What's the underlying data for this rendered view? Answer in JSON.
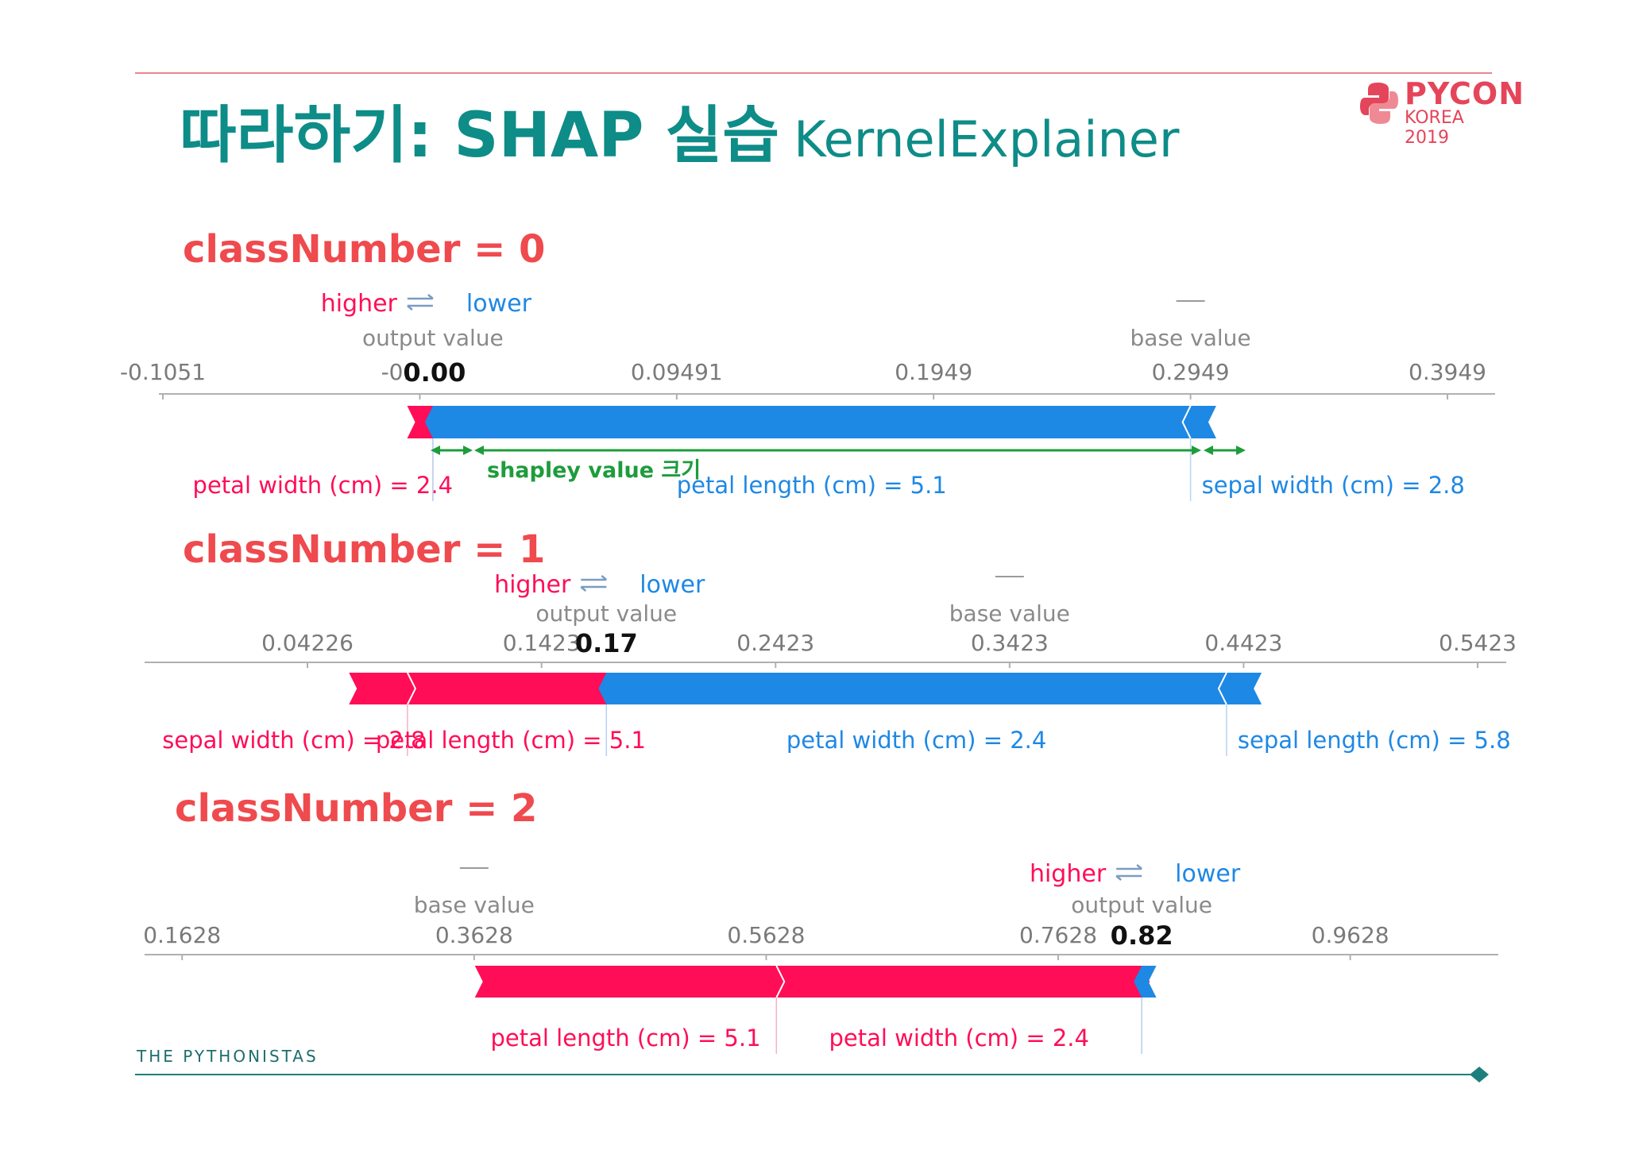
{
  "slide": {
    "title_main": "따라하기: SHAP 실습",
    "title_sub": "KernelExplainer",
    "logo_line1": "PYCON",
    "logo_line2": "KOREA 2019",
    "footer": "THE PYTHONISTAS"
  },
  "colors": {
    "positive": "#ff0d57",
    "negative": "#1e88e5",
    "title": "#0e8c88",
    "class_label": "#ef4a4e",
    "annotation": "#1e9c3c"
  },
  "labels": {
    "higher": "higher",
    "lower": "lower",
    "output_value": "output value",
    "base_value": "base value"
  },
  "annotation": {
    "text": "shapley value 크기"
  },
  "chart_data": [
    {
      "type": "force",
      "label": "classNumber = 0",
      "ticks": [
        -0.1051,
        -0.0051,
        0.09491,
        0.1949,
        0.2949,
        0.3949
      ],
      "tick_labels": [
        "-0.1051",
        "-0.",
        "0.09491",
        "0.1949",
        "0.2949",
        "0.3949"
      ],
      "xlim": [
        -0.1051,
        0.3949
      ],
      "base_value": 0.2949,
      "output_value": 0.0,
      "output_label": "0.00",
      "positive": [
        {
          "feature": "petal width (cm) = 2.4",
          "value": 0.01
        }
      ],
      "negative": [
        {
          "feature": "petal length (cm) = 5.1",
          "value": 0.2949
        },
        {
          "feature": "sepal width (cm) = 2.8",
          "value": 0.01
        }
      ]
    },
    {
      "type": "force",
      "label": "classNumber = 1",
      "ticks": [
        0.04226,
        0.1423,
        0.2423,
        0.3423,
        0.4423,
        0.5423
      ],
      "tick_labels": [
        "0.04226",
        "0.1423",
        "0.2423",
        "0.3423",
        "0.4423",
        "0.5423"
      ],
      "xlim": [
        0.04226,
        0.5423
      ],
      "base_value": 0.3423,
      "output_value": 0.17,
      "output_label": "0.17",
      "positive": [
        {
          "feature": "sepal width (cm) = 2.8",
          "value": 0.025
        },
        {
          "feature": "petal length (cm) = 5.1",
          "value": 0.085
        }
      ],
      "negative": [
        {
          "feature": "petal width (cm) = 2.4",
          "value": 0.265
        },
        {
          "feature": "sepal length (cm) = 5.8",
          "value": 0.015
        }
      ]
    },
    {
      "type": "force",
      "label": "classNumber = 2",
      "ticks": [
        0.1628,
        0.3628,
        0.5628,
        0.7628,
        0.9628
      ],
      "tick_labels": [
        "0.1628",
        "0.3628",
        "0.5628",
        "0.7628",
        "0.9628"
      ],
      "xlim": [
        0.0,
        1.0
      ],
      "base_value": 0.3628,
      "output_value": 0.82,
      "output_label": "0.82",
      "positive": [
        {
          "feature": "petal length (cm) = 5.1",
          "value": 0.2065
        },
        {
          "feature": "petal width (cm) = 2.4",
          "value": 0.2502
        }
      ],
      "negative": [
        {
          "feature": "",
          "value": 0.01
        }
      ]
    }
  ]
}
